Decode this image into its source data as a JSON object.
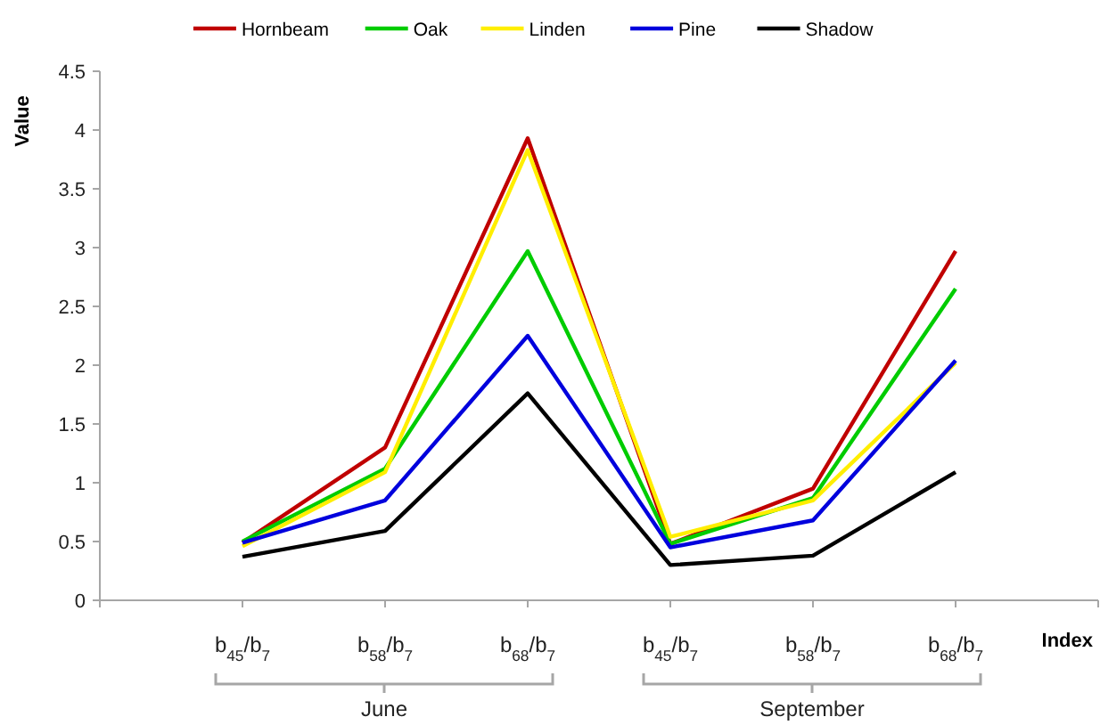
{
  "chart_data": {
    "type": "line",
    "ylabel": "Value",
    "xlabel": "Index",
    "categories": [
      null,
      "b$_{45}$/b$_{7}$",
      "b$_{58}$/b$_{7}$",
      "b$_{68}$/b$_{7}$",
      "b$_{45}$/b$_{7}$",
      "b$_{58}$/b$_{7}$",
      "b$_{68}$/b$_{7}$",
      null
    ],
    "series": [
      {
        "name": "Hornbeam",
        "color": "#c00000",
        "values": [
          null,
          0.49,
          1.3,
          3.93,
          0.48,
          0.95,
          2.97,
          null
        ]
      },
      {
        "name": "Oak",
        "color": "#00cc00",
        "values": [
          null,
          0.5,
          1.12,
          2.97,
          0.48,
          0.87,
          2.65,
          null
        ]
      },
      {
        "name": "Linden",
        "color": "#ffee00",
        "values": [
          null,
          0.46,
          1.09,
          3.83,
          0.54,
          0.85,
          2.02,
          null
        ]
      },
      {
        "name": "Pine",
        "color": "#0000dd",
        "values": [
          null,
          0.49,
          0.85,
          2.25,
          0.45,
          0.68,
          2.04,
          null
        ]
      },
      {
        "name": "Shadow",
        "color": "#000000",
        "values": [
          null,
          0.37,
          0.59,
          1.76,
          0.3,
          0.38,
          1.09,
          null
        ]
      }
    ],
    "ylim": [
      0,
      4.5
    ],
    "yticks": [
      0,
      0.5,
      1,
      1.5,
      2,
      2.5,
      3,
      3.5,
      4,
      4.5
    ],
    "grid": false,
    "legend": "top",
    "marker": "none",
    "line_style": "solid",
    "annotations": [
      "June",
      "September"
    ]
  }
}
